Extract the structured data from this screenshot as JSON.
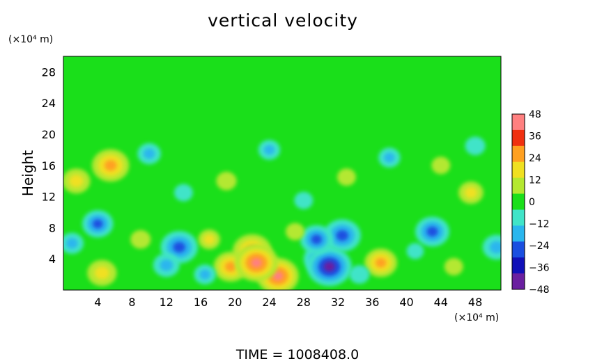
{
  "chart_data": {
    "type": "heatmap",
    "title": "vertical velocity",
    "subtitle": "",
    "xlabel": "",
    "ylabel": "Height",
    "x_unit_label": "(×10⁴ m)",
    "y_unit_label": "(×10⁴ m)",
    "footer": "TIME = 1008408.0",
    "xlim": [
      0,
      51
    ],
    "ylim": [
      0,
      30
    ],
    "x_ticks": [
      4,
      8,
      12,
      16,
      20,
      24,
      28,
      32,
      36,
      40,
      44,
      48
    ],
    "y_ticks": [
      4,
      8,
      12,
      16,
      20,
      24,
      28
    ],
    "colorbar": {
      "min": -48,
      "max": 48,
      "ticks": [
        48,
        36,
        24,
        12,
        0,
        -12,
        -24,
        -36,
        -48
      ],
      "colors": [
        "#6a1fa0",
        "#1010b8",
        "#1a4fe0",
        "#29b6ee",
        "#40e4c8",
        "#1adf1a",
        "#b4e830",
        "#f0e020",
        "#ffa020",
        "#f03010",
        "#ff8080"
      ]
    },
    "background_value": 0,
    "features": [
      {
        "x": 13.5,
        "y": 5.5,
        "value": -34
      },
      {
        "x": 12.0,
        "y": 3.2,
        "value": -20
      },
      {
        "x": 22.0,
        "y": 5.0,
        "value": 36
      },
      {
        "x": 19.5,
        "y": 3.0,
        "value": 30
      },
      {
        "x": 25.0,
        "y": 1.8,
        "value": 40
      },
      {
        "x": 22.5,
        "y": 3.5,
        "value": 42
      },
      {
        "x": 30.0,
        "y": 4.0,
        "value": -30
      },
      {
        "x": 31.0,
        "y": 3.0,
        "value": -44
      },
      {
        "x": 32.5,
        "y": 7.0,
        "value": -34
      },
      {
        "x": 29.5,
        "y": 6.5,
        "value": -28
      },
      {
        "x": 37.0,
        "y": 3.5,
        "value": 28
      },
      {
        "x": 4.5,
        "y": 2.2,
        "value": 24
      },
      {
        "x": 5.5,
        "y": 16.0,
        "value": 34
      },
      {
        "x": 1.5,
        "y": 14.0,
        "value": 22
      },
      {
        "x": 43.0,
        "y": 7.5,
        "value": -30
      },
      {
        "x": 4.0,
        "y": 8.5,
        "value": -26
      },
      {
        "x": 50.5,
        "y": 5.5,
        "value": -22
      },
      {
        "x": 47.5,
        "y": 12.5,
        "value": 18
      },
      {
        "x": 1.0,
        "y": 6.0,
        "value": -16
      },
      {
        "x": 17.0,
        "y": 6.5,
        "value": 14
      },
      {
        "x": 27.0,
        "y": 7.5,
        "value": 10
      },
      {
        "x": 41.0,
        "y": 5.0,
        "value": -8
      },
      {
        "x": 45.5,
        "y": 3.0,
        "value": 10
      },
      {
        "x": 9.0,
        "y": 6.5,
        "value": 12
      },
      {
        "x": 16.5,
        "y": 2.0,
        "value": -14
      },
      {
        "x": 34.5,
        "y": 2.0,
        "value": -12
      },
      {
        "x": 10.0,
        "y": 17.5,
        "value": -16
      },
      {
        "x": 24.0,
        "y": 18.0,
        "value": -14
      },
      {
        "x": 38.0,
        "y": 17.0,
        "value": -14
      },
      {
        "x": 19.0,
        "y": 14.0,
        "value": 12
      },
      {
        "x": 33.0,
        "y": 14.5,
        "value": 10
      },
      {
        "x": 44.0,
        "y": 16.0,
        "value": 10
      },
      {
        "x": 48.0,
        "y": 18.5,
        "value": -12
      },
      {
        "x": 14.0,
        "y": 12.5,
        "value": -10
      },
      {
        "x": 28.0,
        "y": 11.5,
        "value": -10
      }
    ]
  }
}
